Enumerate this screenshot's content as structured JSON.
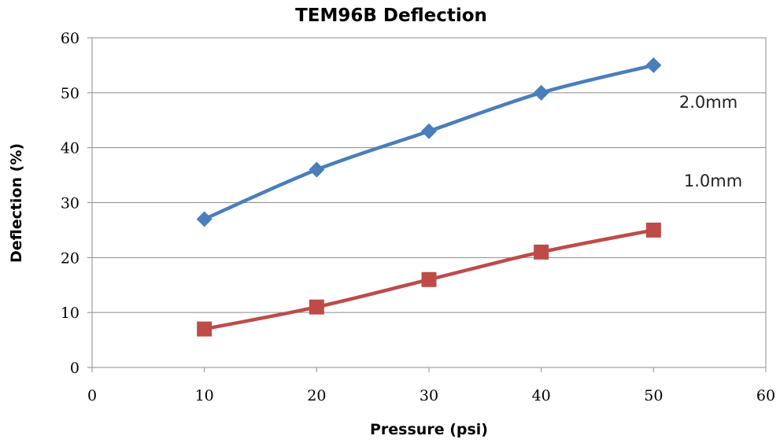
{
  "chart_data": {
    "type": "line",
    "title": "TEM96B Deflection",
    "xlabel": "Pressure (psi)",
    "ylabel": "Deflection (%)",
    "xlim": [
      0,
      60
    ],
    "ylim": [
      0,
      60
    ],
    "xticks": [
      0,
      10,
      20,
      30,
      40,
      50,
      60
    ],
    "yticks": [
      0,
      10,
      20,
      30,
      40,
      50,
      60
    ],
    "grid": "horizontal",
    "legend": "none",
    "series": [
      {
        "name": "2.0mm",
        "color": "#4a7ebb",
        "marker": "diamond",
        "x": [
          10,
          20,
          30,
          40,
          50
        ],
        "values": [
          27,
          36,
          43,
          50,
          55
        ]
      },
      {
        "name": "1.0mm",
        "color": "#be4b48",
        "marker": "square",
        "x": [
          10,
          20,
          30,
          40,
          50
        ],
        "values": [
          7,
          11,
          16,
          21,
          25
        ]
      }
    ]
  }
}
